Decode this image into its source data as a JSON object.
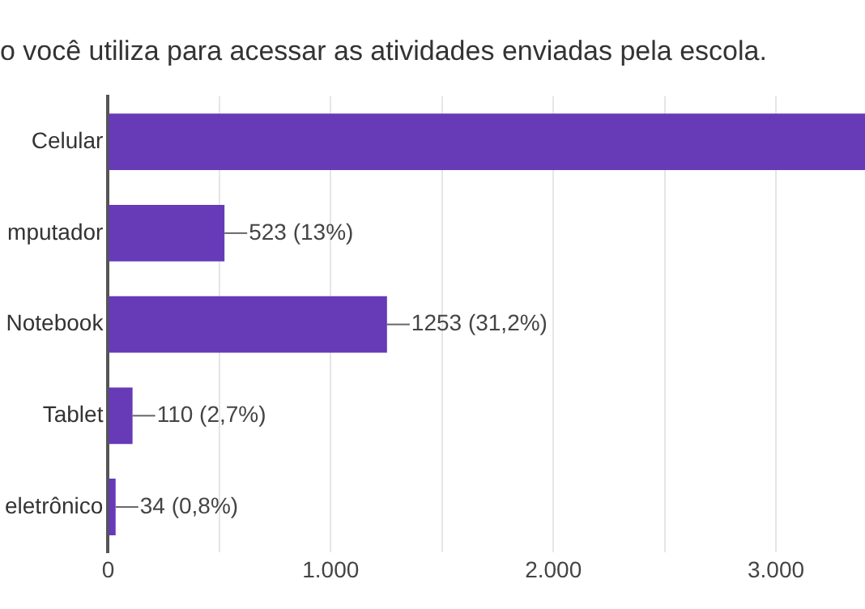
{
  "chart_data": {
    "type": "bar",
    "orientation": "horizontal",
    "title": "o você utiliza para acessar  as atividades enviadas pela escola.",
    "categories": [
      "Celular",
      "mputador",
      "Notebook",
      "Tablet",
      "eletrônico"
    ],
    "values": [
      3400,
      523,
      1253,
      110,
      34
    ],
    "value_labels": [
      null,
      "523 (13%)",
      "1253 (31,2%)",
      "110 (2,7%)",
      "34 (0,8%)"
    ],
    "color": "#673ab7",
    "xlim": [
      0,
      3400
    ],
    "xticks": [
      0,
      {
        "value": 500,
        "label": null
      },
      {
        "value": 1000,
        "label": "1.000"
      },
      {
        "value": 1500,
        "label": null
      },
      {
        "value": 2000,
        "label": "2.000"
      },
      {
        "value": 2500,
        "label": null
      },
      {
        "value": 3000,
        "label": "3.000"
      }
    ],
    "grid": "x",
    "legend": false
  }
}
